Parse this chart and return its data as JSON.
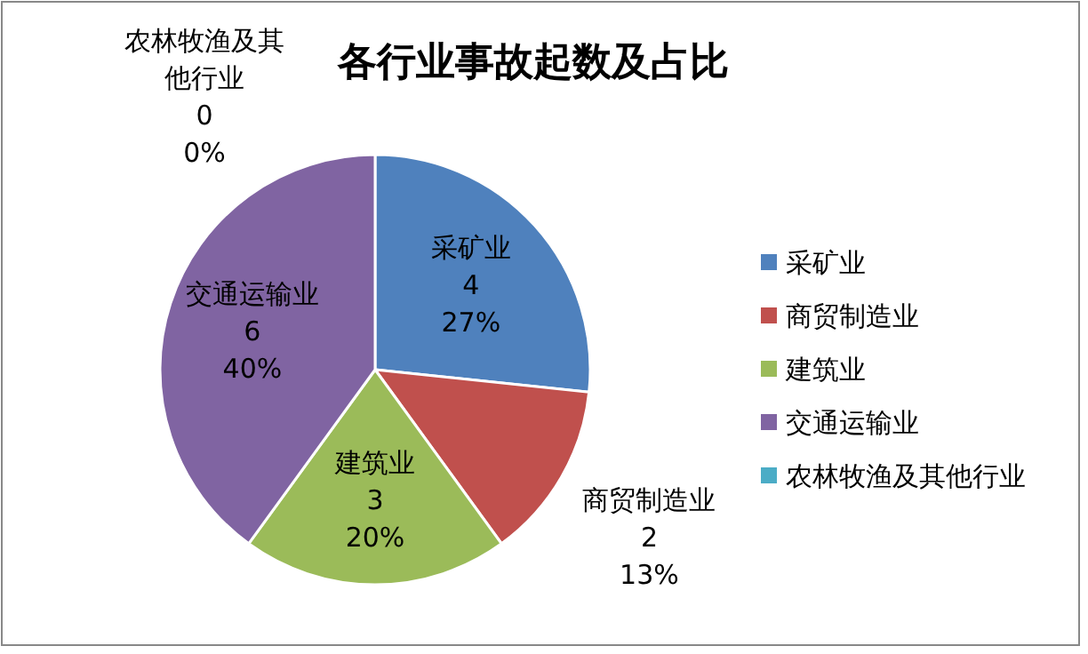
{
  "chart_data": {
    "type": "pie",
    "title": "各行业事故起数及占比",
    "categories": [
      "采矿业",
      "商贸制造业",
      "建筑业",
      "交通运输业",
      "农林牧渔及其他行业"
    ],
    "values": [
      4,
      2,
      3,
      6,
      0
    ],
    "value_labels": [
      "4\n27%",
      "2\n13%",
      "3\n20%",
      "6\n40%",
      "0\n0%"
    ],
    "colors": [
      "#4f81bd",
      "#c0504d",
      "#9bbb59",
      "#8064a2",
      "#4bacc6"
    ],
    "legend": "right"
  }
}
